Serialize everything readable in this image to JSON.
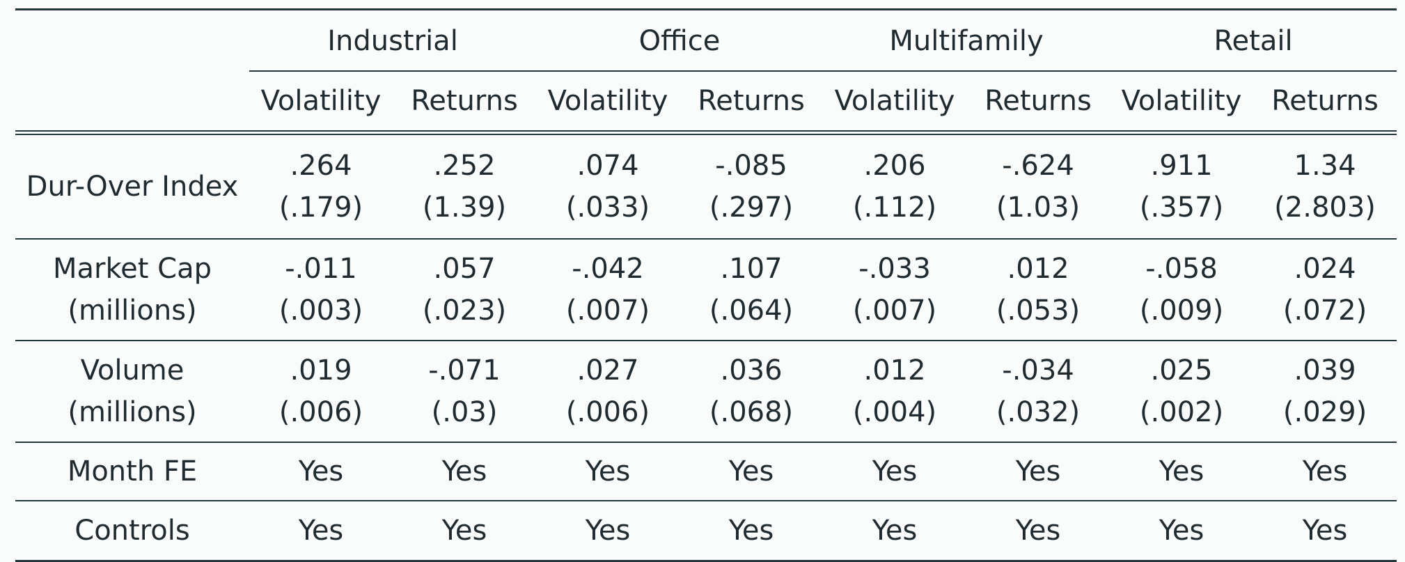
{
  "groups": [
    "Industrial",
    "Office",
    "Multifamily",
    "Retail"
  ],
  "subheaders": [
    "Volatility",
    "Returns",
    "Volatility",
    "Returns",
    "Volatility",
    "Returns",
    "Volatility",
    "Returns"
  ],
  "rows": [
    {
      "label_lines": [
        "Dur-Over Index"
      ],
      "coef": [
        ".264",
        ".252",
        ".074",
        "-.085",
        ".206",
        "-.624",
        ".911",
        "1.34"
      ],
      "se": [
        "(.179)",
        "(1.39)",
        "(.033)",
        "(.297)",
        "(.112)",
        "(1.03)",
        "(.357)",
        "(2.803)"
      ]
    },
    {
      "label_lines": [
        "Market Cap",
        "(millions)"
      ],
      "coef": [
        "-.011",
        ".057",
        "-.042",
        ".107",
        "-.033",
        ".012",
        "-.058",
        ".024"
      ],
      "se": [
        "(.003)",
        "(.023)",
        "(.007)",
        "(.064)",
        "(.007)",
        "(.053)",
        "(.009)",
        "(.072)"
      ]
    },
    {
      "label_lines": [
        "Volume",
        "(millions)"
      ],
      "coef": [
        ".019",
        "-.071",
        ".027",
        ".036",
        ".012",
        "-.034",
        ".025",
        ".039"
      ],
      "se": [
        "(.006)",
        "(.03)",
        "(.006)",
        "(.068)",
        "(.004)",
        "(.032)",
        "(.002)",
        "(.029)"
      ]
    }
  ],
  "flags": [
    {
      "label": "Month FE",
      "values": [
        "Yes",
        "Yes",
        "Yes",
        "Yes",
        "Yes",
        "Yes",
        "Yes",
        "Yes"
      ]
    },
    {
      "label": "Controls",
      "values": [
        "Yes",
        "Yes",
        "Yes",
        "Yes",
        "Yes",
        "Yes",
        "Yes",
        "Yes"
      ]
    }
  ]
}
